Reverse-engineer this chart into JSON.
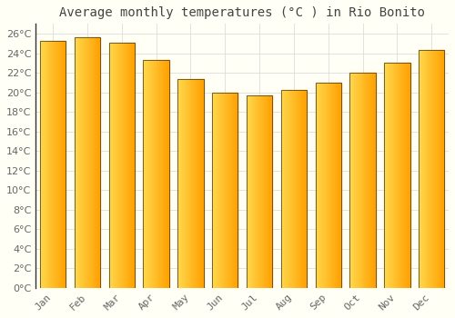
{
  "title": "Average monthly temperatures (°C ) in Rio Bonito",
  "months": [
    "Jan",
    "Feb",
    "Mar",
    "Apr",
    "May",
    "Jun",
    "Jul",
    "Aug",
    "Sep",
    "Oct",
    "Nov",
    "Dec"
  ],
  "values": [
    25.3,
    25.6,
    25.1,
    23.3,
    21.4,
    20.0,
    19.7,
    20.2,
    21.0,
    22.0,
    23.0,
    24.3
  ],
  "bar_color_left": "#FFD84D",
  "bar_color_right": "#FFA000",
  "bar_edge_color": "#333333",
  "ylim": [
    0,
    27
  ],
  "yticks": [
    0,
    2,
    4,
    6,
    8,
    10,
    12,
    14,
    16,
    18,
    20,
    22,
    24,
    26
  ],
  "background_color": "#FFFFF5",
  "grid_color": "#dddddd",
  "title_fontsize": 10,
  "tick_fontsize": 8,
  "title_color": "#444444",
  "tick_color": "#666666",
  "bar_width": 0.75
}
